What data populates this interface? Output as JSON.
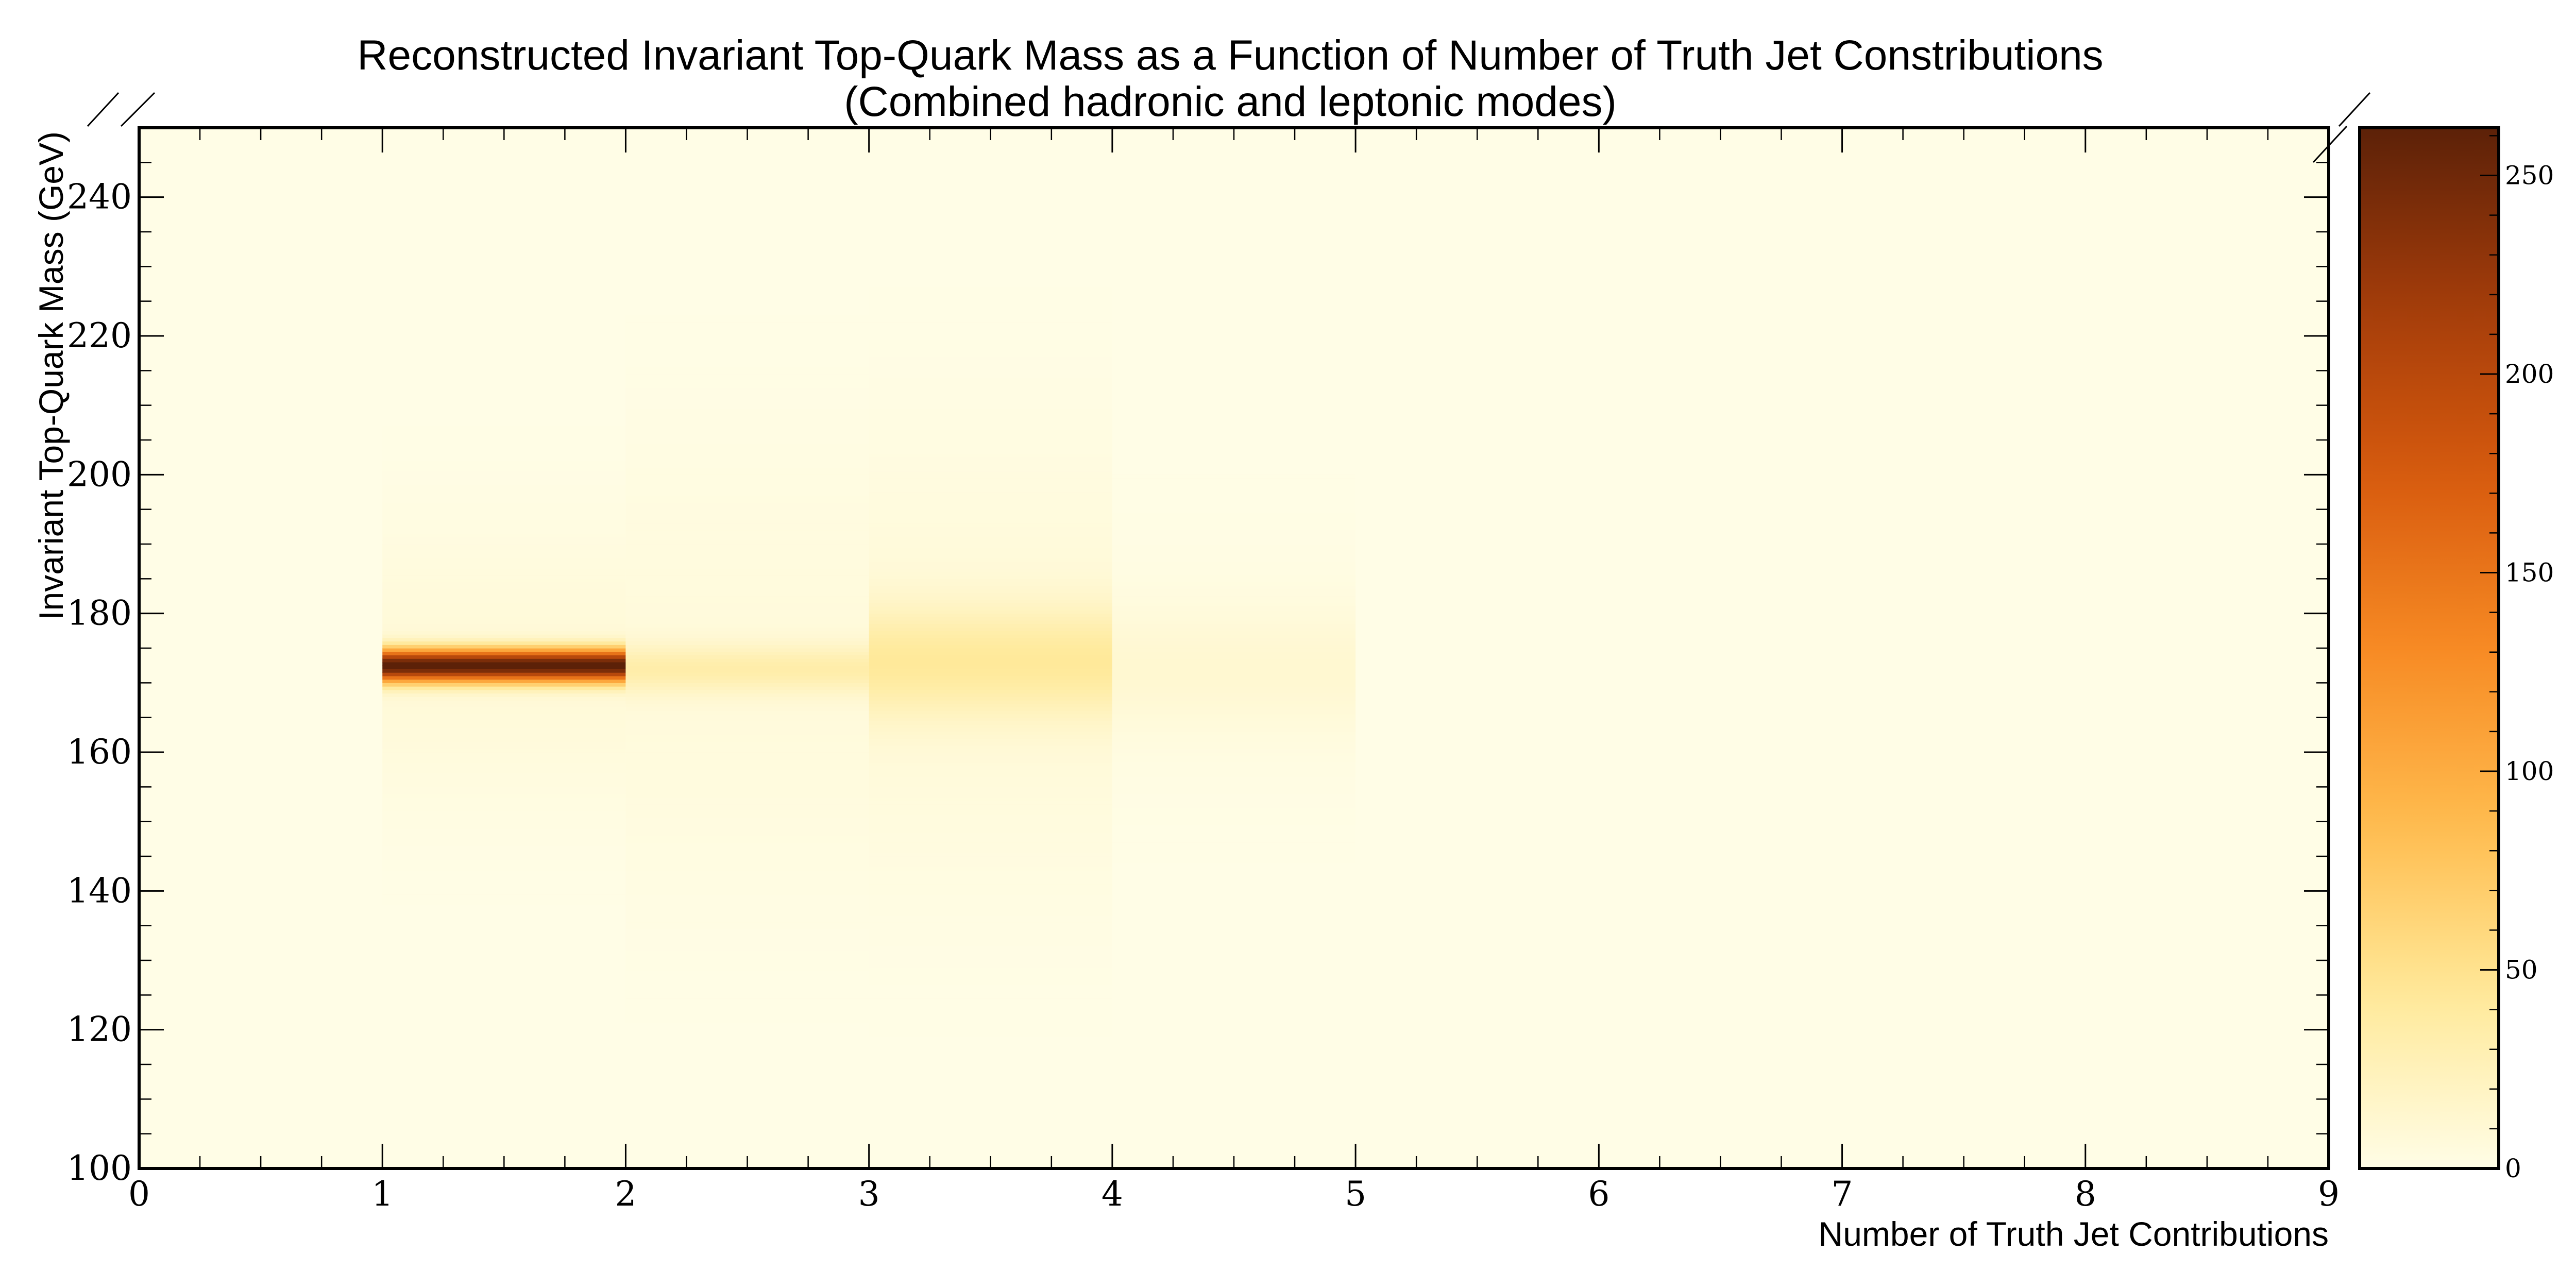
{
  "chart_data": {
    "type": "heatmap",
    "title": "Reconstructed Invariant Top-Quark Mass as a Function of Number of Truth Jet Constributions",
    "subtitle": "(Combined hadronic and leptonic modes)",
    "xlabel": "Number of Truth Jet Contributions",
    "ylabel": "Invariant Top-Quark Mass (GeV)",
    "xlim": [
      0,
      9
    ],
    "ylim": [
      100,
      250
    ],
    "x_ticks": [
      "0",
      "1",
      "2",
      "3",
      "4",
      "5",
      "6",
      "7",
      "8",
      "9"
    ],
    "y_ticks": [
      "100",
      "120",
      "140",
      "160",
      "180",
      "200",
      "220",
      "240"
    ],
    "colorbar": {
      "min": 0,
      "max": 262,
      "ticks": [
        "0",
        "50",
        "100",
        "150",
        "200",
        "250"
      ],
      "colormap": [
        "#fffde6",
        "#ffe999",
        "#ffbb4d",
        "#f78a24",
        "#d75a0e",
        "#a23c0a",
        "#5c2108"
      ]
    },
    "grid": false,
    "columns": [
      {
        "x": [
          1,
          2
        ],
        "mean": 172.5,
        "sigma": 1.6,
        "peak": 262,
        "wide_sigma": 14,
        "wide_peak": 8
      },
      {
        "x": [
          2,
          3
        ],
        "mean": 172.0,
        "sigma": 2.5,
        "peak": 28,
        "wide_sigma": 22,
        "wide_peak": 6
      },
      {
        "x": [
          3,
          4
        ],
        "mean": 173.0,
        "sigma": 5.5,
        "peak": 35,
        "wide_sigma": 22,
        "wide_peak": 8
      },
      {
        "x": [
          4,
          5
        ],
        "mean": 172.0,
        "sigma": 6.0,
        "peak": 9,
        "wide_sigma": 14,
        "wide_peak": 3
      }
    ]
  }
}
